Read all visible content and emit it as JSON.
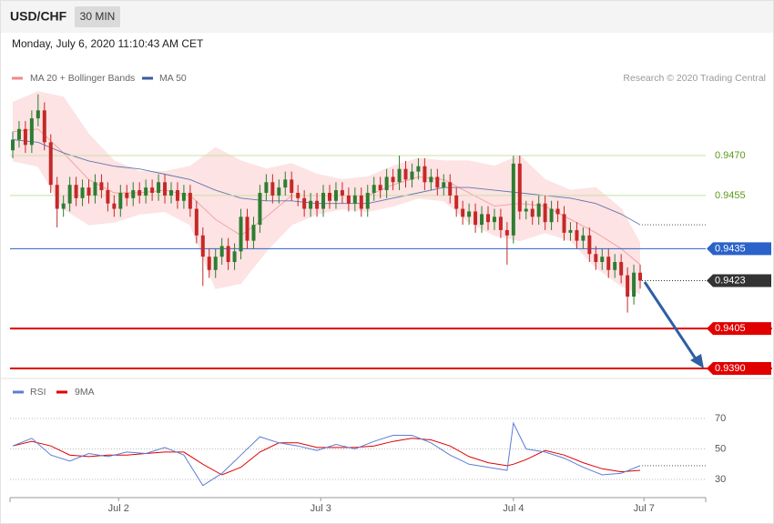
{
  "chart_data": {
    "type": "candlestick",
    "title": "USD/CHF",
    "timeframe": "30 MIN",
    "date": "Monday, July 6, 2020 11:10:43 AM CET",
    "source": "Research © 2020 Trading Central",
    "ylim": [
      0.9386,
      0.9496
    ],
    "xlim": [
      -0.43,
      109.34
    ],
    "xticks": [
      {
        "value": 16.7,
        "label": "Jul 2"
      },
      {
        "value": 48.6,
        "label": "Jul 3"
      },
      {
        "value": 79,
        "label": "Jul 4"
      },
      {
        "value": 99.6,
        "label": "Jul 7"
      }
    ],
    "candles": {
      "up_color": "#2e7d32",
      "down_color": "#c62828",
      "open": [
        0.9472,
        0.9476,
        0.948,
        0.9474,
        0.9484,
        0.9487,
        0.9475,
        0.9459,
        0.945,
        0.9452,
        0.9459,
        0.9454,
        0.9458,
        0.9455,
        0.946,
        0.9457,
        0.9452,
        0.945,
        0.9456,
        0.9454,
        0.9457,
        0.9455,
        0.9458,
        0.9456,
        0.946,
        0.9455,
        0.9457,
        0.9453,
        0.9456,
        0.945,
        0.944,
        0.9432,
        0.9427,
        0.9432,
        0.9436,
        0.943,
        0.9434,
        0.9447,
        0.9438,
        0.9444,
        0.9456,
        0.946,
        0.9455,
        0.9458,
        0.9461,
        0.9456,
        0.9454,
        0.945,
        0.9453,
        0.945,
        0.9456,
        0.9453,
        0.9457,
        0.9455,
        0.9452,
        0.9455,
        0.945,
        0.9456,
        0.9459,
        0.9457,
        0.9462,
        0.946,
        0.9465,
        0.9461,
        0.9464,
        0.9466,
        0.946,
        0.9462,
        0.9458,
        0.946,
        0.9455,
        0.945,
        0.9447,
        0.9449,
        0.9444,
        0.9448,
        0.9445,
        0.9447,
        0.9442,
        0.944,
        0.9467,
        0.9449,
        0.945,
        0.9447,
        0.9452,
        0.9445,
        0.945,
        0.9448,
        0.9441,
        0.9442,
        0.9438,
        0.944,
        0.9433,
        0.943,
        0.9432,
        0.9427,
        0.943,
        0.9425,
        0.9417,
        0.9426
      ],
      "high": [
        0.9479,
        0.9483,
        0.9483,
        0.9487,
        0.9493,
        0.949,
        0.9478,
        0.9462,
        0.9455,
        0.9462,
        0.9462,
        0.9461,
        0.9461,
        0.9463,
        0.9463,
        0.946,
        0.9455,
        0.9459,
        0.9459,
        0.946,
        0.946,
        0.9461,
        0.9461,
        0.9463,
        0.9463,
        0.946,
        0.946,
        0.9459,
        0.9459,
        0.9453,
        0.9443,
        0.9435,
        0.9435,
        0.9439,
        0.9439,
        0.9437,
        0.945,
        0.945,
        0.9447,
        0.9459,
        0.9463,
        0.9463,
        0.9461,
        0.9464,
        0.9464,
        0.9459,
        0.9457,
        0.9456,
        0.9456,
        0.9459,
        0.9459,
        0.946,
        0.946,
        0.9458,
        0.9458,
        0.9458,
        0.9459,
        0.9462,
        0.9462,
        0.9465,
        0.9465,
        0.947,
        0.9468,
        0.9467,
        0.9469,
        0.9469,
        0.9465,
        0.9465,
        0.9463,
        0.9463,
        0.9458,
        0.9453,
        0.9452,
        0.9452,
        0.9451,
        0.9451,
        0.945,
        0.945,
        0.9445,
        0.947,
        0.947,
        0.9453,
        0.9453,
        0.9455,
        0.9455,
        0.9453,
        0.9453,
        0.9451,
        0.9445,
        0.9445,
        0.9443,
        0.9443,
        0.9436,
        0.9435,
        0.9435,
        0.9433,
        0.9433,
        0.9428,
        0.9429,
        0.9429
      ],
      "low": [
        0.9469,
        0.9473,
        0.9471,
        0.9471,
        0.9481,
        0.9472,
        0.9456,
        0.9443,
        0.9447,
        0.9449,
        0.9451,
        0.9451,
        0.9452,
        0.9452,
        0.9454,
        0.9449,
        0.9447,
        0.9447,
        0.9451,
        0.9451,
        0.9452,
        0.9452,
        0.9453,
        0.9453,
        0.9452,
        0.9452,
        0.945,
        0.945,
        0.9447,
        0.9437,
        0.9421,
        0.9424,
        0.9424,
        0.9429,
        0.9427,
        0.9427,
        0.9431,
        0.9435,
        0.9435,
        0.9441,
        0.9453,
        0.9452,
        0.9452,
        0.9455,
        0.9453,
        0.9451,
        0.9447,
        0.9447,
        0.9447,
        0.9447,
        0.945,
        0.945,
        0.9452,
        0.9449,
        0.9449,
        0.9447,
        0.9447,
        0.9453,
        0.9454,
        0.9454,
        0.9457,
        0.9457,
        0.9458,
        0.9458,
        0.9461,
        0.9457,
        0.9457,
        0.9455,
        0.9455,
        0.9452,
        0.9447,
        0.9444,
        0.9444,
        0.9441,
        0.9441,
        0.9442,
        0.9442,
        0.9439,
        0.9429,
        0.9437,
        0.9446,
        0.9446,
        0.9444,
        0.9444,
        0.9442,
        0.9442,
        0.9445,
        0.9438,
        0.9438,
        0.9435,
        0.9435,
        0.943,
        0.9427,
        0.9427,
        0.9424,
        0.9424,
        0.9422,
        0.9411,
        0.9414,
        0.942
      ],
      "close": [
        0.9476,
        0.948,
        0.9474,
        0.9484,
        0.9487,
        0.9475,
        0.9459,
        0.945,
        0.9452,
        0.9459,
        0.9454,
        0.9458,
        0.9455,
        0.946,
        0.9457,
        0.9452,
        0.945,
        0.9456,
        0.9454,
        0.9457,
        0.9455,
        0.9458,
        0.9456,
        0.946,
        0.9455,
        0.9457,
        0.9453,
        0.9456,
        0.945,
        0.944,
        0.9432,
        0.9427,
        0.9432,
        0.9436,
        0.943,
        0.9434,
        0.9447,
        0.9438,
        0.9444,
        0.9456,
        0.946,
        0.9455,
        0.9458,
        0.9461,
        0.9456,
        0.9454,
        0.945,
        0.9453,
        0.945,
        0.9456,
        0.9453,
        0.9457,
        0.9455,
        0.9452,
        0.9455,
        0.945,
        0.9456,
        0.9459,
        0.9457,
        0.9462,
        0.946,
        0.9465,
        0.9461,
        0.9464,
        0.9466,
        0.946,
        0.9462,
        0.9458,
        0.946,
        0.9455,
        0.945,
        0.9447,
        0.9449,
        0.9444,
        0.9448,
        0.9445,
        0.9447,
        0.9442,
        0.944,
        0.9467,
        0.9449,
        0.945,
        0.9447,
        0.9452,
        0.9445,
        0.945,
        0.9448,
        0.9441,
        0.9442,
        0.9438,
        0.944,
        0.9433,
        0.943,
        0.9432,
        0.9427,
        0.943,
        0.9425,
        0.9417,
        0.9426,
        0.9423
      ]
    },
    "bands": {
      "name": "MA 20 + Bollinger Bands",
      "color": "#f08a8a",
      "fill": "#fde3e3",
      "x": [
        0,
        4,
        8,
        12,
        16,
        20,
        24,
        28,
        32,
        36,
        40,
        44,
        48,
        52,
        56,
        60,
        64,
        68,
        72,
        76,
        80,
        84,
        88,
        92,
        96,
        99
      ],
      "upper": [
        0.949,
        0.9494,
        0.9492,
        0.9478,
        0.9468,
        0.9464,
        0.9464,
        0.9466,
        0.9473,
        0.9468,
        0.9465,
        0.9467,
        0.9463,
        0.9461,
        0.9462,
        0.9466,
        0.9469,
        0.9468,
        0.9468,
        0.9466,
        0.947,
        0.9461,
        0.9457,
        0.9458,
        0.945,
        0.9437
      ],
      "lower": [
        0.9468,
        0.9466,
        0.945,
        0.9444,
        0.9445,
        0.9448,
        0.9449,
        0.9444,
        0.942,
        0.9422,
        0.9434,
        0.9444,
        0.9448,
        0.945,
        0.9449,
        0.9451,
        0.9454,
        0.9453,
        0.9445,
        0.944,
        0.9438,
        0.9441,
        0.9438,
        0.9428,
        0.9421,
        0.9418
      ],
      "middle": [
        0.9479,
        0.948,
        0.9471,
        0.9461,
        0.9456,
        0.9456,
        0.9457,
        0.9455,
        0.9446,
        0.944,
        0.9447,
        0.9455,
        0.9455,
        0.9455,
        0.9455,
        0.9459,
        0.9462,
        0.9461,
        0.9456,
        0.9451,
        0.9452,
        0.9451,
        0.9446,
        0.9441,
        0.9435,
        0.9429
      ]
    },
    "ma50": {
      "name": "MA 50",
      "color": "#3a5ba0",
      "x": [
        0,
        4,
        8,
        12,
        16,
        20,
        24,
        28,
        32,
        36,
        40,
        44,
        48,
        52,
        56,
        60,
        64,
        68,
        72,
        76,
        80,
        84,
        88,
        92,
        96,
        99
      ],
      "values": [
        0.9476,
        0.9475,
        0.9471,
        0.9468,
        0.9466,
        0.9465,
        0.9463,
        0.9461,
        0.9457,
        0.9454,
        0.9453,
        0.9453,
        0.9452,
        0.9452,
        0.9452,
        0.9454,
        0.9456,
        0.9458,
        0.9458,
        0.9457,
        0.9456,
        0.9455,
        0.9454,
        0.9452,
        0.9448,
        0.9444
      ]
    },
    "levels": [
      {
        "value": 0.947,
        "value_label": "0.9470",
        "color": "#c8e0a4",
        "text_color": "#5a9a1a",
        "style": "plain"
      },
      {
        "value": 0.9455,
        "value_label": "0.9455",
        "color": "#c8e0a4",
        "text_color": "#5a9a1a",
        "style": "plain"
      },
      {
        "value": 0.9435,
        "value_label": "0.9435",
        "color": "#2a62c9",
        "text_color": "#ffffff",
        "style": "box"
      },
      {
        "value": 0.9405,
        "value_label": "0.9405",
        "color": "#e00000",
        "text_color": "#ffffff",
        "style": "major"
      },
      {
        "value": 0.939,
        "value_label": "0.9390",
        "color": "#e00000",
        "text_color": "#ffffff",
        "style": "major"
      }
    ],
    "last_price": {
      "value": 0.9423,
      "value_label": "0.9423",
      "color": "#333333"
    },
    "rsi": {
      "ylim": [
        19,
        79
      ],
      "yticks": [
        30,
        50,
        70
      ],
      "x": [
        0,
        3,
        6,
        9,
        12,
        15,
        18,
        21,
        24,
        27,
        30,
        33,
        36,
        39,
        42,
        45,
        48,
        51,
        54,
        57,
        60,
        63,
        66,
        69,
        72,
        75,
        78,
        79,
        81,
        84,
        87,
        90,
        93,
        96,
        99
      ],
      "series": [
        {
          "name": "RSI",
          "color": "#5b7fd4",
          "values": [
            52,
            57,
            46,
            42,
            47,
            45,
            48,
            47,
            51,
            46,
            26,
            34,
            46,
            58,
            54,
            52,
            49,
            53,
            50,
            55,
            59,
            59,
            54,
            46,
            40,
            38,
            36,
            67,
            50,
            48,
            44,
            38,
            33,
            34,
            39
          ]
        },
        {
          "name": "9MA",
          "color": "#e00000",
          "values": [
            52,
            55,
            52,
            46,
            45,
            46,
            46,
            47,
            48,
            48,
            40,
            33,
            38,
            48,
            54,
            54,
            51,
            51,
            51,
            52,
            55,
            57,
            56,
            52,
            45,
            41,
            39,
            40,
            43,
            49,
            46,
            41,
            37,
            35,
            36
          ]
        }
      ]
    }
  }
}
